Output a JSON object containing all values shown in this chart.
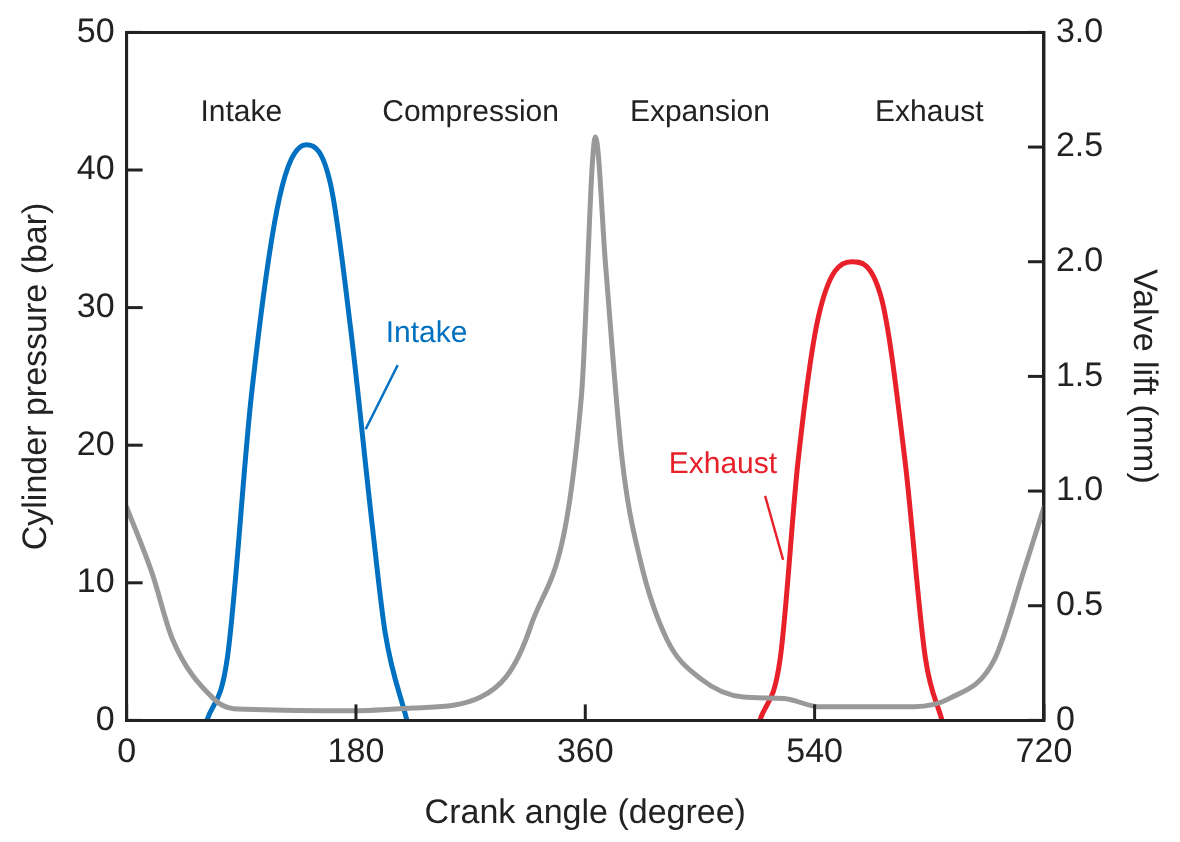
{
  "chart_data": {
    "type": "line",
    "xlabel": "Crank angle (degree)",
    "ylabel": "Cylinder pressure (bar)",
    "y2label": "Valve lift (mm)",
    "annotations": [
      "Intake",
      "Compression",
      "Expansion",
      "Exhaust"
    ],
    "series": [
      {
        "color": "#999999",
        "x": [
          0,
          20,
          36,
          68,
          84,
          176,
          225,
          278,
          317,
          357,
          368,
          376,
          389,
          403,
          424,
          451,
          484,
          516,
          543,
          618,
          646,
          681,
          705,
          720
        ],
        "values": [
          15.5,
          10.7,
          5.9,
          1.6,
          0.85,
          0.7,
          0.9,
          1.7,
          6.8,
          23.6,
          42.4,
          33,
          18.9,
          11.7,
          5.9,
          3.0,
          1.7,
          1.6,
          1.0,
          1.0,
          1.6,
          4.4,
          11.1,
          15.5
        ]
      },
      {
        "name": "Intake",
        "color": "#0070c0",
        "axis": "y2",
        "x": [
          63,
          79,
          98,
          120,
          141,
          160,
          176,
          193,
          203,
          220
        ],
        "values": [
          0,
          0.27,
          1.42,
          2.28,
          2.51,
          2.34,
          1.7,
          0.84,
          0.38,
          0
        ]
      },
      {
        "name": "Exhaust",
        "color": "#e8202a",
        "axis": "y2",
        "x": [
          497,
          513,
          527,
          543,
          569,
          592,
          611,
          627,
          640
        ],
        "values": [
          0,
          0.27,
          1.13,
          1.76,
          2.0,
          1.85,
          1.13,
          0.27,
          0
        ]
      }
    ],
    "xlim": [
      0,
      720
    ],
    "xticks": [
      0,
      180,
      360,
      540,
      720
    ],
    "ylim": [
      0,
      50
    ],
    "yticks": [
      0,
      10,
      20,
      30,
      40,
      50
    ],
    "y2lim": [
      0,
      3.0
    ],
    "y2ticks": [
      {
        "value": 0,
        "label": "0"
      },
      {
        "value": 0.5,
        "label": "0.5"
      },
      {
        "value": 1,
        "label": "1.0"
      },
      {
        "value": 1.5,
        "label": "1.5"
      },
      {
        "value": 2,
        "label": "2.0"
      },
      {
        "value": 2.5,
        "label": "2.5"
      },
      {
        "value": 3,
        "label": "3.0"
      }
    ],
    "grid": false,
    "legend": false,
    "marker": "none",
    "line_style": "solid"
  }
}
